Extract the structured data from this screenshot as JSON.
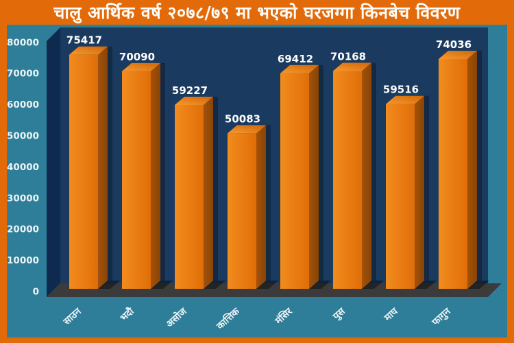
{
  "title": "चालु आर्थिक वर्ष २०७८/७९ मा भएको घरजग्गा किनबेच विवरण",
  "colors": {
    "frame": "#E26A09",
    "title_text": "#FFFFFF",
    "plot_bg": "#2E7E99",
    "back_wall": "#1B3A5F",
    "side_wall": "#0E2A4E",
    "floor": "#3B3B3B",
    "bar_front_light": "#F28C1E",
    "bar_front_dark": "#E06E08",
    "bar_side_light": "#A35208",
    "bar_side_dark": "#8A4406",
    "bar_top_light": "#F79A2E",
    "bar_top_dark": "#D06508",
    "axis_text": "#EAF2F5",
    "value_text": "#FFFFFF"
  },
  "chart_data": {
    "type": "bar",
    "style": "3d",
    "title": "चालु आर्थिक वर्ष २०७८/७९ मा भएको घरजग्गा किनबेच विवरण",
    "categories": [
      "साउन",
      "भदौ",
      "असोज",
      "कात्तिक",
      "मंसिर",
      "पुस",
      "माघ",
      "फागुन"
    ],
    "values": [
      75417,
      70090,
      59227,
      50083,
      69412,
      70168,
      59516,
      74036
    ],
    "data_labels": true,
    "xlabel": "",
    "ylabel": "",
    "ylim": [
      0,
      80000
    ],
    "yticks": [
      0,
      10000,
      20000,
      30000,
      40000,
      50000,
      60000,
      70000,
      80000
    ],
    "grid": false,
    "legend": "none"
  }
}
